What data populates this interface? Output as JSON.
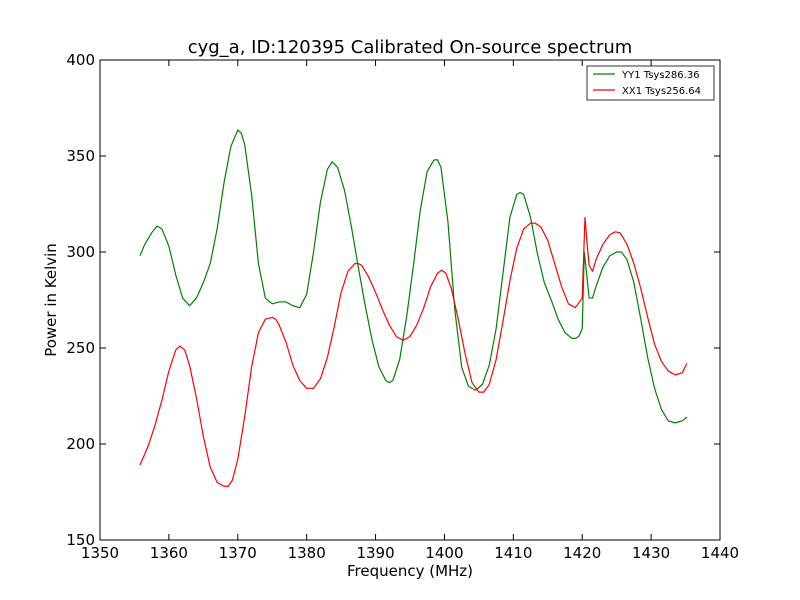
{
  "chart_data": {
    "type": "line",
    "title": "cyg_a, ID:120395 Calibrated On-source spectrum",
    "xlabel": "Frequency (MHz)",
    "ylabel": "Power in Kelvin",
    "xlim": [
      1350,
      1440
    ],
    "ylim": [
      150,
      400
    ],
    "xticks": [
      1350,
      1360,
      1370,
      1380,
      1390,
      1400,
      1410,
      1420,
      1430,
      1440
    ],
    "yticks": [
      150,
      200,
      250,
      300,
      350,
      400
    ],
    "grid": false,
    "legend": "top-right",
    "series": [
      {
        "name": "YY1 Tsys286.36",
        "color": "#008000",
        "x": [
          1355.8,
          1356.5,
          1357.5,
          1358.3,
          1359.0,
          1360.0,
          1361.0,
          1362.0,
          1363.0,
          1364.0,
          1365.0,
          1366.0,
          1367.0,
          1368.0,
          1369.0,
          1370.0,
          1370.5,
          1371.0,
          1372.0,
          1373.0,
          1374.0,
          1375.0,
          1376.0,
          1377.0,
          1378.0,
          1379.0,
          1380.0,
          1381.0,
          1382.0,
          1383.0,
          1383.7,
          1384.5,
          1385.5,
          1386.5,
          1387.5,
          1388.5,
          1389.5,
          1390.5,
          1391.5,
          1392.0,
          1392.5,
          1393.5,
          1394.5,
          1395.5,
          1396.5,
          1397.5,
          1398.5,
          1399.0,
          1399.5,
          1400.5,
          1401.5,
          1402.5,
          1403.5,
          1404.5,
          1405.5,
          1406.5,
          1407.5,
          1408.5,
          1409.5,
          1410.5,
          1411.0,
          1411.5,
          1412.5,
          1413.5,
          1414.5,
          1415.5,
          1416.5,
          1417.5,
          1418.5,
          1419.0,
          1419.5,
          1420.0,
          1420.3,
          1420.6,
          1421.0,
          1421.5,
          1422.0,
          1423.0,
          1424.0,
          1425.0,
          1425.7,
          1426.5,
          1427.5,
          1428.5,
          1429.5,
          1430.5,
          1431.5,
          1432.5,
          1433.5,
          1434.5,
          1435.2
        ],
        "values": [
          298,
          304,
          310,
          313.5,
          312,
          303,
          288,
          276,
          272,
          276,
          284,
          294,
          312,
          336,
          355,
          363.5,
          362,
          356,
          330,
          294,
          276,
          273,
          274,
          274,
          272,
          271,
          278,
          300,
          326,
          343,
          347,
          344,
          332,
          313,
          292,
          272,
          254,
          240,
          233,
          232,
          233,
          244,
          266,
          293,
          322,
          342,
          348,
          348,
          344,
          316,
          270,
          240,
          230,
          228,
          231,
          241,
          260,
          289,
          318,
          330,
          331,
          330,
          318,
          299,
          284,
          275,
          265,
          258,
          255,
          255,
          256,
          260,
          300,
          290,
          276,
          276,
          282,
          292,
          298,
          300,
          300,
          296,
          284,
          265,
          245,
          229,
          218,
          212,
          211,
          212,
          214
        ]
      },
      {
        "name": "XX1 Tsys256.64",
        "color": "#ff0000",
        "x": [
          1355.8,
          1357.0,
          1358.0,
          1359.0,
          1360.0,
          1361.0,
          1361.6,
          1362.3,
          1363.0,
          1364.0,
          1365.0,
          1366.0,
          1367.0,
          1368.0,
          1368.6,
          1369.2,
          1370.0,
          1371.0,
          1372.0,
          1373.0,
          1374.0,
          1375.0,
          1375.5,
          1376.0,
          1377.0,
          1378.0,
          1379.0,
          1380.0,
          1381.0,
          1382.0,
          1383.0,
          1384.0,
          1385.0,
          1386.0,
          1387.0,
          1387.5,
          1388.0,
          1389.0,
          1390.0,
          1391.0,
          1392.0,
          1393.0,
          1394.0,
          1395.0,
          1396.0,
          1397.0,
          1398.0,
          1399.0,
          1399.6,
          1400.2,
          1401.0,
          1402.0,
          1403.0,
          1404.0,
          1405.0,
          1405.7,
          1406.5,
          1407.5,
          1408.5,
          1409.5,
          1410.5,
          1411.5,
          1412.5,
          1413.2,
          1414.0,
          1415.0,
          1416.0,
          1417.0,
          1418.0,
          1419.0,
          1420.0,
          1420.4,
          1420.7,
          1421.0,
          1421.5,
          1422.0,
          1423.0,
          1424.0,
          1424.8,
          1425.5,
          1426.5,
          1427.5,
          1428.5,
          1429.5,
          1430.5,
          1431.5,
          1432.5,
          1433.5,
          1434.5,
          1435.2
        ],
        "values": [
          189,
          199,
          210,
          223,
          238,
          249,
          251,
          249,
          241,
          224,
          204,
          188,
          180,
          178,
          178,
          181,
          192,
          214,
          240,
          258,
          265,
          266,
          265,
          262,
          253,
          241,
          233,
          229,
          229,
          234,
          245,
          261,
          279,
          290,
          294,
          294,
          293,
          287,
          279,
          270,
          262,
          256,
          254,
          256,
          262,
          271,
          282,
          289,
          290.5,
          289,
          281,
          265,
          247,
          232,
          227,
          227,
          231,
          244,
          264,
          285,
          302,
          312,
          315,
          315,
          313,
          306,
          294,
          282,
          273,
          271,
          276,
          318,
          305,
          293,
          290,
          296,
          304,
          309,
          310.5,
          310,
          304,
          294,
          281,
          266,
          252,
          243,
          238,
          236,
          237,
          242
        ]
      }
    ]
  }
}
